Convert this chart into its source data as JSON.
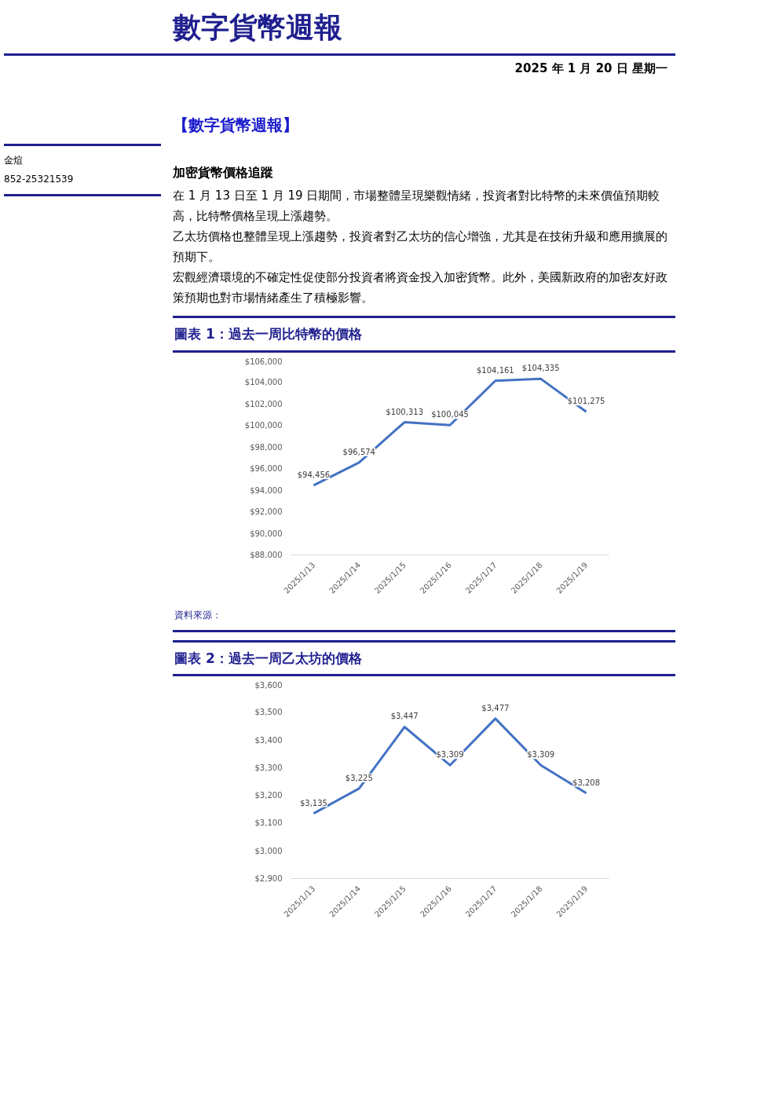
{
  "chart_data": [
    {
      "type": "other",
      "title": "數字貨幣週報",
      "subtitle": "2025 年 1 月 20 日  星期一",
      "annotations": [
        "【數字貨幣週報】",
        "金煊",
        "852-25321539",
        "加密貨幣價格追蹤",
        "在 1 月 13 日至 1 月 19 日期間，市場整體呈現樂觀情緒，投資者對比特幣的未來價值預期較高，比特幣價格呈現上漲趨勢。",
        "乙太坊價格也整體呈現上漲趨勢，投資者對乙太坊的信心增強，尤其是在技術升級和應用擴展的預期下。",
        "宏觀經濟環境的不確定性促使部分投資者將資金投入加密貨幣。此外，美國新政府的加密友好政策預期也對市場情緒產生了積極影響。"
      ]
    },
    {
      "type": "line",
      "title": "圖表 1：過去一周比特幣的價格",
      "annotations": [
        "資料來源："
      ],
      "categories": [
        "2025/1/13",
        "2025/1/14",
        "2025/1/15",
        "2025/1/16",
        "2025/1/17",
        "2025/1/18",
        "2025/1/19"
      ],
      "series": [
        {
          "color": "#4472c4",
          "values": [
            94456,
            96574,
            100313,
            100045,
            104161,
            104335,
            101275
          ],
          "value_labels": [
            "$94,456",
            "$96,574",
            "$100,313",
            "$100,045",
            "$104,161",
            "$104,335",
            "$101,275"
          ]
        }
      ],
      "grid": false,
      "marker": "none",
      "line_style": "solid",
      "ylim": [
        88000,
        106000
      ],
      "yticks": [
        {
          "value": 88000,
          "label": "$88,000"
        },
        {
          "value": 90000,
          "label": "$90,000"
        },
        {
          "value": 92000,
          "label": "$92,000"
        },
        {
          "value": 94000,
          "label": "$94,000"
        },
        {
          "value": 96000,
          "label": "$96,000"
        },
        {
          "value": 98000,
          "label": "$98,000"
        },
        {
          "value": 100000,
          "label": "$100,000"
        },
        {
          "value": 102000,
          "label": "$102,000"
        },
        {
          "value": 104000,
          "label": "$104,000"
        },
        {
          "value": 106000,
          "label": "$106,000"
        }
      ]
    },
    {
      "type": "line",
      "title": "圖表 2：過去一周乙太坊的價格",
      "categories": [
        "2025/1/13",
        "2025/1/14",
        "2025/1/15",
        "2025/1/16",
        "2025/1/17",
        "2025/1/18",
        "2025/1/19"
      ],
      "series": [
        {
          "color": "#4472c4",
          "values": [
            3135,
            3225,
            3447,
            3309,
            3477,
            3309,
            3208
          ],
          "value_labels": [
            "$3,135",
            "$3,225",
            "$3,447",
            "$3,309",
            "$3,477",
            "$3,309",
            "$3,208"
          ]
        }
      ],
      "ylim": [
        2900,
        3600
      ],
      "yticks": [
        {
          "value": 2900,
          "label": "$2,900"
        },
        {
          "value": 3000,
          "label": "$3,000"
        },
        {
          "value": 3100,
          "label": "$3,100"
        },
        {
          "value": 3200,
          "label": "$3,200"
        },
        {
          "value": 3300,
          "label": "$3,300"
        },
        {
          "value": 3400,
          "label": "$3,400"
        },
        {
          "value": 3500,
          "label": "$3,500"
        },
        {
          "value": 3600,
          "label": "$3,600"
        }
      ],
      "grid": false,
      "marker": "none",
      "line_style": "solid"
    }
  ]
}
